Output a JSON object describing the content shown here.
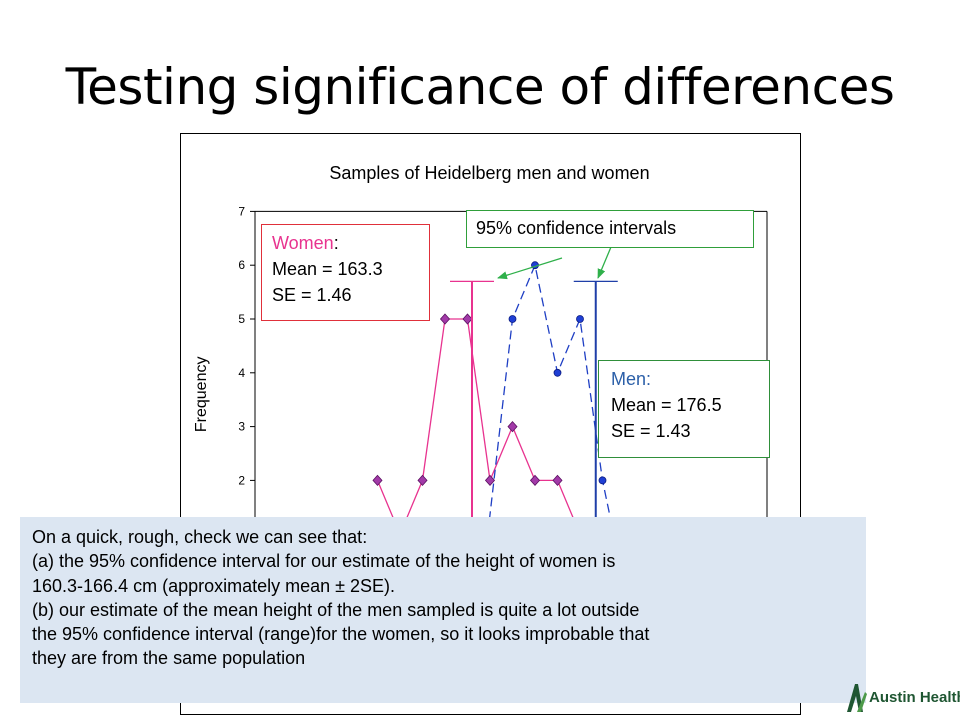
{
  "slide": {
    "title": "Testing significance of differences"
  },
  "chart_data": {
    "type": "line",
    "title": "Samples of Heidelberg men and women",
    "ylabel": "Frequency",
    "xlabel": "",
    "ylim": [
      0,
      7
    ],
    "yticks": [
      2,
      3,
      4,
      5,
      6,
      7
    ],
    "grid": false,
    "series": [
      {
        "name": "Women",
        "color": "#e8338f",
        "marker": "diamond",
        "dash": "solid",
        "points": [
          {
            "x": 1,
            "y": 2
          },
          {
            "x": 2,
            "y": 1
          },
          {
            "x": 3,
            "y": 2
          },
          {
            "x": 4,
            "y": 5
          },
          {
            "x": 5,
            "y": 5
          },
          {
            "x": 6,
            "y": 2
          },
          {
            "x": 7,
            "y": 3
          },
          {
            "x": 8,
            "y": 2
          },
          {
            "x": 9,
            "y": 2
          },
          {
            "x": 10,
            "y": 1
          }
        ]
      },
      {
        "name": "Men",
        "color": "#1f3fc4",
        "marker": "circle",
        "dash": "dashed",
        "points": [
          {
            "x": 5.9,
            "y": 1
          },
          {
            "x": 7,
            "y": 5
          },
          {
            "x": 8,
            "y": 6
          },
          {
            "x": 9,
            "y": 4
          },
          {
            "x": 10,
            "y": 5
          },
          {
            "x": 11,
            "y": 2
          },
          {
            "x": 11.5,
            "y": 1
          }
        ]
      }
    ],
    "ci_markers": [
      {
        "series": "Women",
        "x": 5.2,
        "y_top": 5.7,
        "color": "#e8338f"
      },
      {
        "series": "Men",
        "x": 10.7,
        "y_top": 5.7,
        "color": "#1f3fa8"
      }
    ]
  },
  "women_stats": {
    "name": "Women",
    "colon": ":",
    "mean_line": "Mean = 163.3",
    "se_line": "SE = 1.46"
  },
  "men_stats": {
    "name": "Men:",
    "mean_line": "Mean = 176.5",
    "se_line": "SE = 1.43"
  },
  "ci_label": "95% confidence intervals",
  "note": {
    "lines": [
      "On a quick, rough, check we can see that:",
      "(a) the 95% confidence interval for our estimate of the height of women is",
      "160.3-166.4 cm (approximately mean ± 2SE).",
      "(b) our estimate of the mean height of the men sampled is quite a lot outside",
      "the 95% confidence interval (range)for the women, so it looks improbable that",
      "they are from the same population"
    ]
  },
  "logo": {
    "text": "Austin Health",
    "color": "#1f5632"
  }
}
